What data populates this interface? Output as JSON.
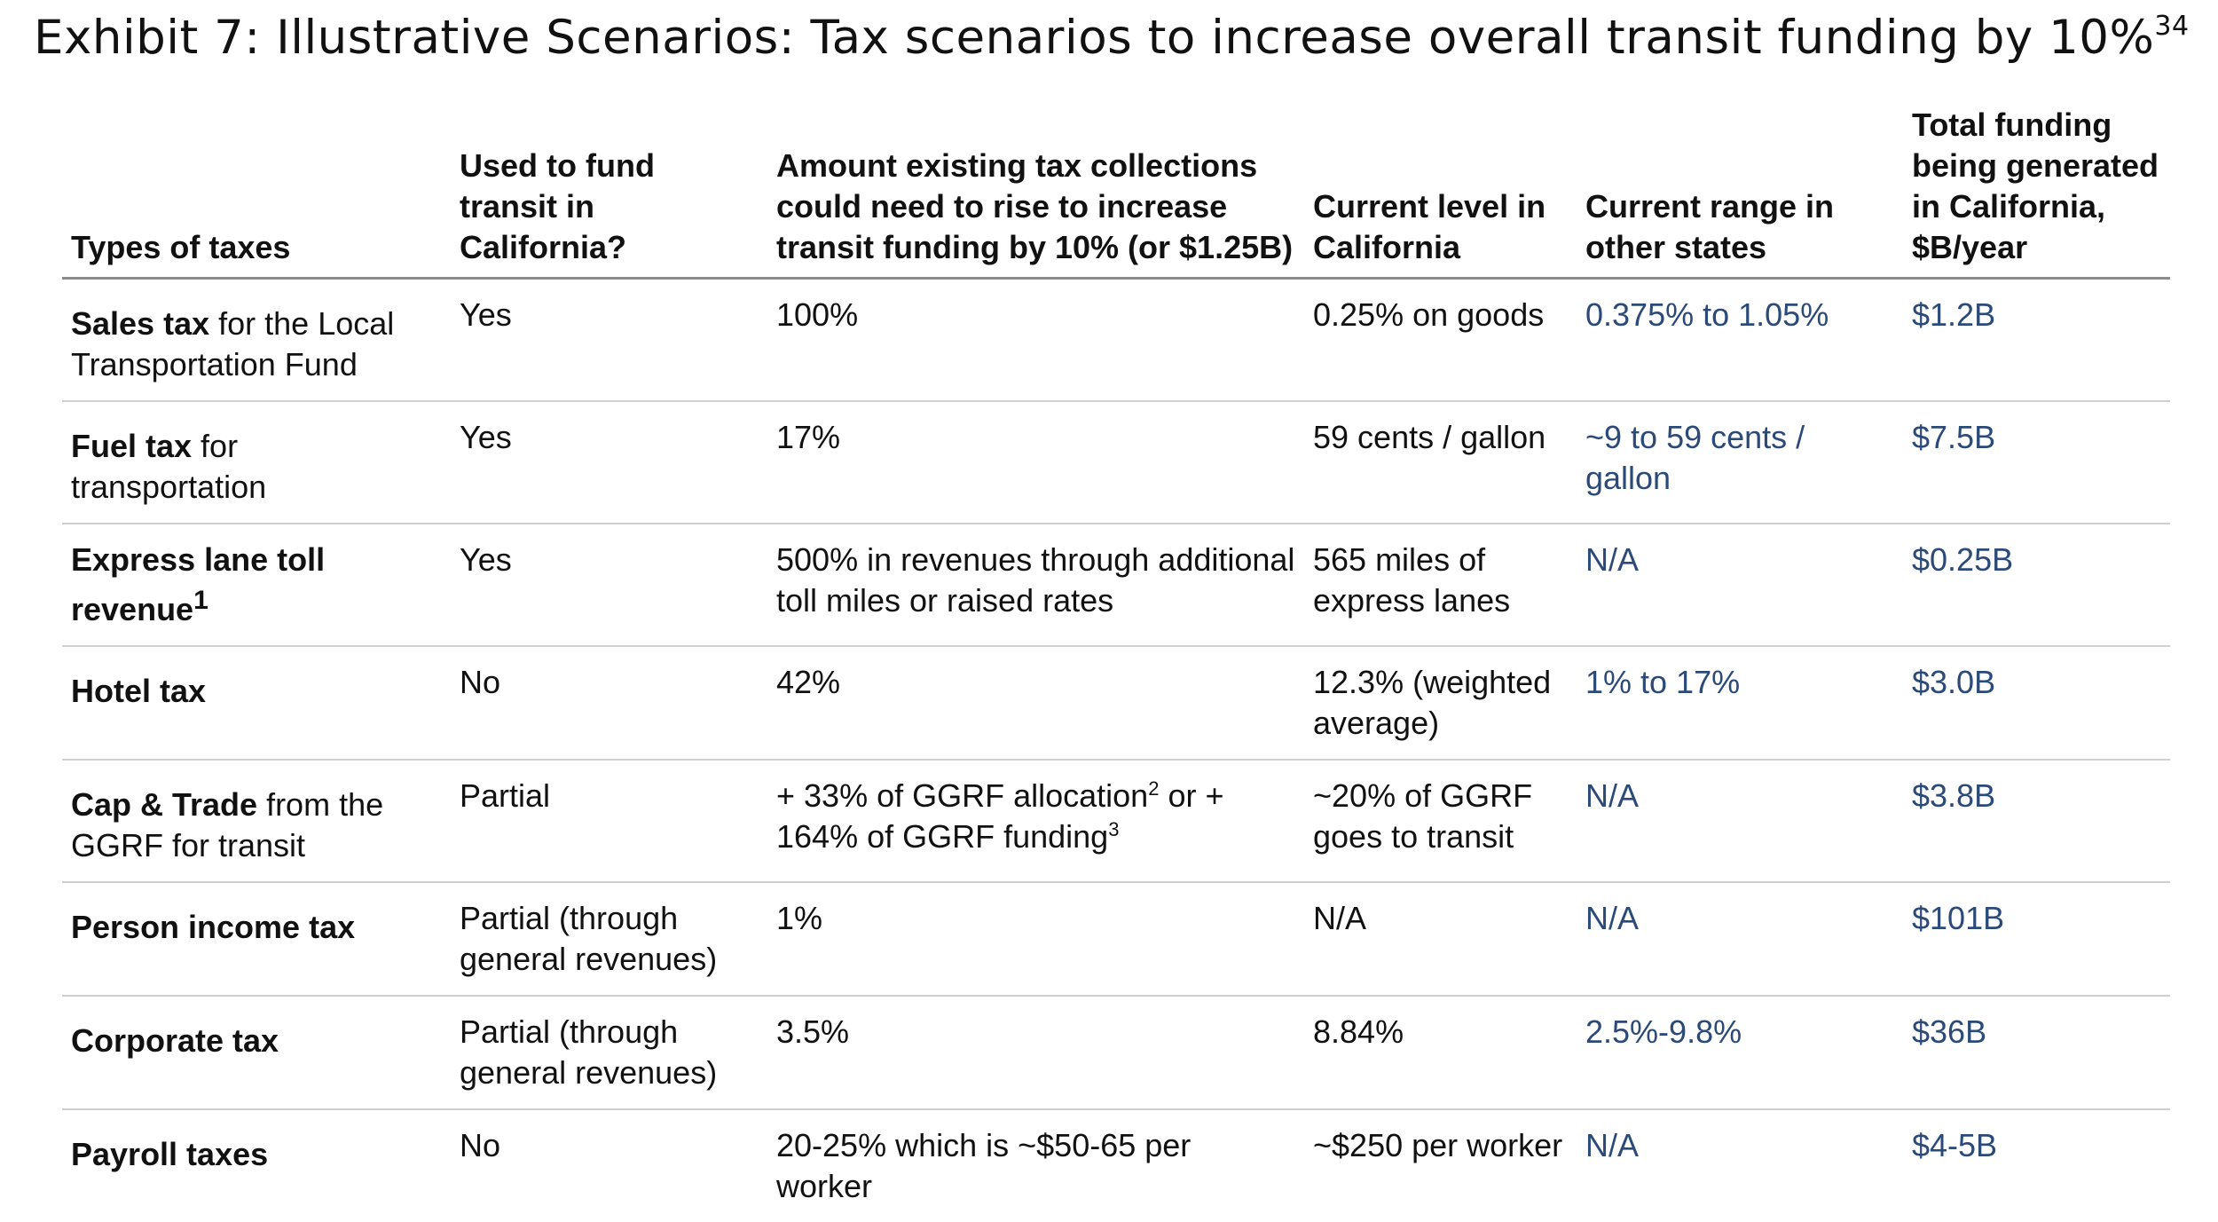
{
  "title": {
    "text": "Exhibit 7: Illustrative Scenarios: Tax scenarios to increase overall transit funding by 10%",
    "superscript": "34"
  },
  "table": {
    "headers": {
      "type": "Types of taxes",
      "used": "Used to fund transit in California?",
      "amount": "Amount existing tax collections could need to rise to increase transit funding by 10% (or $1.25B)",
      "level": "Current level in California",
      "range": "Current range in other states",
      "total": "Total funding being generated in California, $B/year"
    },
    "rows": [
      {
        "name_bold": "Sales tax",
        "name_rest": " for the Local Transportation Fund",
        "name_sup": "",
        "used": "Yes",
        "amount": "100%",
        "amount_sup": "",
        "amount_line2": "",
        "amount_line2_sup": "",
        "level": "0.25% on goods",
        "range": "0.375% to 1.05%",
        "total": "$1.2B"
      },
      {
        "name_bold": "Fuel tax",
        "name_rest": " for transportation",
        "name_sup": "",
        "used": "Yes",
        "amount": "17%",
        "amount_sup": "",
        "amount_line2": "",
        "amount_line2_sup": "",
        "level": "59 cents / gallon",
        "range": "~9 to 59 cents / gallon",
        "total": "$7.5B"
      },
      {
        "name_bold": "Express lane toll revenue",
        "name_rest": "",
        "name_sup": "1",
        "used": "Yes",
        "amount": "500% in revenues through additional toll miles or raised rates",
        "amount_sup": "",
        "amount_line2": "",
        "amount_line2_sup": "",
        "level": "565 miles of express lanes",
        "range": "N/A",
        "total": "$0.25B"
      },
      {
        "name_bold": "Hotel tax",
        "name_rest": "",
        "name_sup": "",
        "used": "No",
        "amount": "42%",
        "amount_sup": "",
        "amount_line2": "",
        "amount_line2_sup": "",
        "level": "12.3% (weighted average)",
        "range": "1% to 17%",
        "total": "$3.0B"
      },
      {
        "name_bold": "Cap & Trade",
        "name_rest": " from the GGRF for transit",
        "name_sup": "",
        "used": "Partial",
        "amount": "+ 33% of GGRF allocation",
        "amount_sup": "2",
        "amount_line2": " or + 164% of GGRF funding",
        "amount_line2_sup": "3",
        "level": "~20% of GGRF goes to transit",
        "range": "N/A",
        "total": "$3.8B"
      },
      {
        "name_bold": "Person income tax",
        "name_rest": "",
        "name_sup": "",
        "used": "Partial (through general revenues)",
        "amount": "1%",
        "amount_sup": "",
        "amount_line2": "",
        "amount_line2_sup": "",
        "level": "N/A",
        "range": "N/A",
        "total": "$101B"
      },
      {
        "name_bold": "Corporate tax",
        "name_rest": "",
        "name_sup": "",
        "used": "Partial (through general revenues)",
        "amount": "3.5%",
        "amount_sup": "",
        "amount_line2": "",
        "amount_line2_sup": "",
        "level": "8.84%",
        "range": "2.5%-9.8%",
        "total": "$36B"
      },
      {
        "name_bold": "Payroll taxes",
        "name_rest": "",
        "name_sup": "",
        "used": "No",
        "amount": "20-25% which is ~$50-65 per worker",
        "amount_sup": "",
        "amount_line2": "",
        "amount_line2_sup": "",
        "level": "~$250 per worker",
        "range": "N/A",
        "total": "$4-5B"
      }
    ]
  },
  "colors": {
    "text": "#111111",
    "blue_text": "#2b4a78",
    "header_rule": "#8c8c8c",
    "row_rule": "#cfcfcf"
  }
}
